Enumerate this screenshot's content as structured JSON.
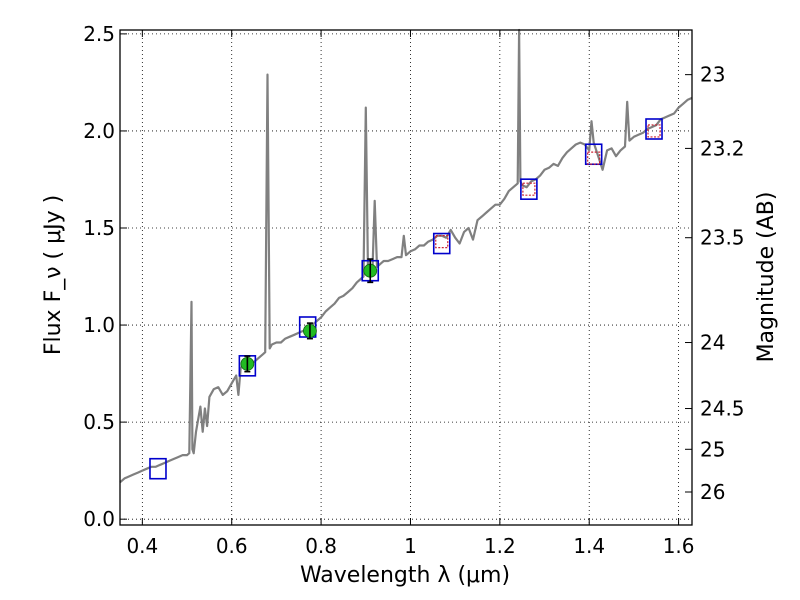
{
  "chart_data": {
    "type": "line",
    "xlabel": "Wavelength  λ (μm)",
    "ylabel": "Flux  F_ν  ( μJy )",
    "ylabel_right": "Magnitude (AB)",
    "xlim": [
      0.35,
      1.63
    ],
    "ylim": [
      -0.03,
      2.52
    ],
    "x_ticks": [
      0.4,
      0.6,
      0.8,
      1.0,
      1.2,
      1.4,
      1.6
    ],
    "x_tick_labels": [
      "0.4",
      "0.6",
      "0.8",
      "1",
      "1.2",
      "1.4",
      "1.6"
    ],
    "y_ticks": [
      0.0,
      0.5,
      1.0,
      1.5,
      2.0,
      2.5
    ],
    "y_tick_labels": [
      "0.0",
      "0.5",
      "1.0",
      "1.5",
      "2.0",
      "2.5"
    ],
    "right_ticks": [
      {
        "flux": 2.29,
        "label": "23"
      },
      {
        "flux": 1.91,
        "label": "23.2"
      },
      {
        "flux": 1.45,
        "label": "23.5"
      },
      {
        "flux": 0.91,
        "label": "24"
      },
      {
        "flux": 0.57,
        "label": "24.5"
      },
      {
        "flux": 0.36,
        "label": "25"
      },
      {
        "flux": 0.14,
        "label": "26"
      }
    ],
    "grid": true,
    "series": [
      {
        "kind": "spectrum",
        "color": "#808080",
        "x": [
          0.35,
          0.36,
          0.37,
          0.38,
          0.39,
          0.4,
          0.41,
          0.42,
          0.43,
          0.44,
          0.45,
          0.46,
          0.47,
          0.48,
          0.49,
          0.5,
          0.505,
          0.51,
          0.512,
          0.515,
          0.52,
          0.53,
          0.535,
          0.54,
          0.545,
          0.55,
          0.56,
          0.57,
          0.58,
          0.59,
          0.6,
          0.61,
          0.615,
          0.62,
          0.63,
          0.64,
          0.65,
          0.66,
          0.67,
          0.675,
          0.68,
          0.685,
          0.69,
          0.7,
          0.71,
          0.72,
          0.73,
          0.74,
          0.75,
          0.76,
          0.77,
          0.78,
          0.79,
          0.8,
          0.81,
          0.82,
          0.83,
          0.84,
          0.85,
          0.86,
          0.87,
          0.88,
          0.89,
          0.895,
          0.9,
          0.905,
          0.91,
          0.915,
          0.92,
          0.925,
          0.93,
          0.94,
          0.95,
          0.96,
          0.97,
          0.98,
          0.985,
          0.99,
          1.0,
          1.01,
          1.02,
          1.03,
          1.04,
          1.05,
          1.06,
          1.07,
          1.08,
          1.09,
          1.1,
          1.11,
          1.12,
          1.13,
          1.14,
          1.15,
          1.16,
          1.17,
          1.18,
          1.19,
          1.2,
          1.21,
          1.22,
          1.23,
          1.24,
          1.243,
          1.246,
          1.25,
          1.26,
          1.27,
          1.28,
          1.29,
          1.3,
          1.31,
          1.32,
          1.33,
          1.34,
          1.35,
          1.36,
          1.37,
          1.38,
          1.39,
          1.4,
          1.405,
          1.41,
          1.42,
          1.43,
          1.44,
          1.45,
          1.46,
          1.47,
          1.48,
          1.485,
          1.49,
          1.5,
          1.51,
          1.52,
          1.53,
          1.54,
          1.55,
          1.56,
          1.57,
          1.58,
          1.59,
          1.6,
          1.61,
          1.62,
          1.63
        ],
        "y": [
          0.19,
          0.21,
          0.22,
          0.23,
          0.24,
          0.25,
          0.26,
          0.27,
          0.27,
          0.28,
          0.29,
          0.3,
          0.31,
          0.32,
          0.33,
          0.33,
          0.34,
          1.12,
          0.36,
          0.34,
          0.45,
          0.58,
          0.45,
          0.57,
          0.48,
          0.63,
          0.67,
          0.68,
          0.64,
          0.66,
          0.7,
          0.74,
          0.64,
          0.78,
          0.8,
          0.8,
          0.81,
          0.83,
          0.85,
          0.86,
          2.29,
          0.88,
          0.9,
          0.91,
          0.91,
          0.93,
          0.94,
          0.95,
          0.96,
          0.97,
          0.98,
          1.0,
          1.02,
          1.04,
          1.07,
          1.09,
          1.11,
          1.14,
          1.15,
          1.17,
          1.19,
          1.22,
          1.24,
          1.25,
          2.12,
          1.27,
          1.28,
          1.29,
          1.64,
          1.3,
          1.31,
          1.33,
          1.33,
          1.34,
          1.35,
          1.35,
          1.46,
          1.36,
          1.38,
          1.39,
          1.41,
          1.41,
          1.43,
          1.44,
          1.46,
          1.46,
          1.45,
          1.49,
          1.45,
          1.42,
          1.48,
          1.5,
          1.44,
          1.54,
          1.56,
          1.58,
          1.6,
          1.62,
          1.62,
          1.65,
          1.69,
          1.71,
          1.73,
          2.52,
          1.74,
          1.72,
          1.71,
          1.74,
          1.75,
          1.77,
          1.8,
          1.81,
          1.83,
          1.82,
          1.86,
          1.89,
          1.91,
          1.93,
          1.94,
          1.93,
          1.9,
          2.05,
          1.94,
          1.87,
          1.8,
          1.9,
          1.91,
          1.87,
          1.9,
          1.92,
          2.15,
          1.95,
          1.97,
          1.98,
          1.99,
          2.01,
          2.02,
          2.03,
          2.06,
          2.07,
          2.08,
          2.09,
          2.12,
          2.14,
          2.16,
          2.17
        ]
      },
      {
        "kind": "model_boxes",
        "color": "#0000cc",
        "x": [
          0.435,
          0.635,
          0.77,
          0.91,
          1.07,
          1.265,
          1.41,
          1.545
        ],
        "y": [
          0.26,
          0.79,
          0.99,
          1.28,
          1.42,
          1.7,
          1.88,
          2.01
        ]
      },
      {
        "kind": "observed_points",
        "color": "#22bb22",
        "x": [
          0.635,
          0.775,
          0.91
        ],
        "y": [
          0.8,
          0.97,
          1.28
        ],
        "err": [
          0.04,
          0.04,
          0.06
        ]
      },
      {
        "kind": "upper_squares",
        "color": "#cc2233",
        "x": [
          1.07,
          1.265,
          1.41,
          1.545
        ],
        "y": [
          1.43,
          1.7,
          1.86,
          2.0
        ]
      }
    ]
  }
}
